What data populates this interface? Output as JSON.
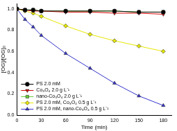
{
  "chart_data": {
    "type": "line",
    "x_label": "Time (min)",
    "y_label": "[OG]/[OG]₀",
    "x": [
      0,
      10,
      20,
      30,
      60,
      90,
      120,
      150,
      180
    ],
    "xlim": [
      0,
      190
    ],
    "xticks": [
      0,
      30,
      60,
      90,
      120,
      150,
      180
    ],
    "ylim": [
      0,
      1.05
    ],
    "yticks": [
      {
        "value": 0,
        "label": "0.0"
      },
      0.2,
      0.4,
      0.6,
      0.8,
      {
        "value": 1,
        "label": "1.0"
      }
    ],
    "grid": false,
    "legend": "lower left",
    "series": [
      {
        "name": "PS 2.0 mM",
        "color": "#000000",
        "marker": "circle",
        "line_style": "solid",
        "values": [
          1.0,
          0.99,
          0.99,
          0.98,
          0.98,
          0.98,
          0.98,
          0.97,
          0.97
        ]
      },
      {
        "name": "Co₃O₄ 2.0 g L⁻¹",
        "color": "#d40000",
        "marker": "triangle-down",
        "line_style": "solid",
        "values": [
          1.0,
          0.99,
          0.98,
          0.98,
          0.97,
          0.97,
          0.96,
          0.96,
          0.95
        ]
      },
      {
        "name": "nano-Co₃O₄ 2.0 g L⁻¹",
        "color": "#66cc33",
        "marker": "square",
        "line_style": "solid",
        "values": [
          1.0,
          0.99,
          0.99,
          0.98,
          0.98,
          0.98,
          0.98,
          0.97,
          0.97
        ]
      },
      {
        "name": "PS 2.0 mM, Co₃O₄ 0.5 g L⁻¹",
        "color": "#e6e600",
        "marker": "diamond",
        "line_style": "solid",
        "values": [
          1.0,
          0.98,
          0.96,
          0.93,
          0.84,
          0.76,
          0.7,
          0.65,
          0.6
        ]
      },
      {
        "name": "PS 2.0 mM, nano-Co₃O₄ 0.5 g L⁻¹",
        "color": "#3333cc",
        "marker": "triangle",
        "line_style": "solid",
        "values": [
          1.0,
          0.9,
          0.83,
          0.75,
          0.58,
          0.44,
          0.3,
          0.18,
          0.09
        ]
      }
    ]
  }
}
